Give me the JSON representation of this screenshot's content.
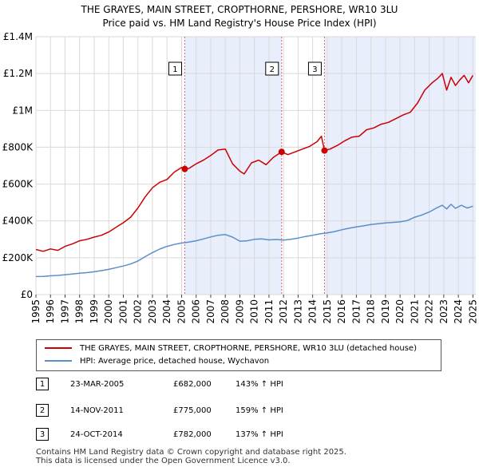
{
  "title": {
    "line1": "THE GRAYES, MAIN STREET, CROPTHORNE, PERSHORE, WR10 3LU",
    "line2": "Price paid vs. HM Land Registry's House Price Index (HPI)"
  },
  "colors": {
    "red": "#cc0000",
    "blue": "#5b8fc9",
    "shade": "#e8eefb"
  },
  "chart_data": {
    "type": "line",
    "xlim": [
      1995,
      2025.2
    ],
    "ylim": [
      0,
      1400000
    ],
    "y_ticks": [
      {
        "value": 0,
        "label": "£0"
      },
      {
        "value": 200000,
        "label": "£200K"
      },
      {
        "value": 400000,
        "label": "£400K"
      },
      {
        "value": 600000,
        "label": "£600K"
      },
      {
        "value": 800000,
        "label": "£800K"
      },
      {
        "value": 1000000,
        "label": "£1M"
      },
      {
        "value": 1200000,
        "label": "£1.2M"
      },
      {
        "value": 1400000,
        "label": "£1.4M"
      }
    ],
    "x_ticks": [
      "1995",
      "1996",
      "1997",
      "1998",
      "1999",
      "2000",
      "2001",
      "2002",
      "2003",
      "2004",
      "2005",
      "2006",
      "2007",
      "2008",
      "2009",
      "2010",
      "2011",
      "2012",
      "2013",
      "2014",
      "2015",
      "2016",
      "2017",
      "2018",
      "2019",
      "2020",
      "2021",
      "2022",
      "2023",
      "2024",
      "2025"
    ],
    "shaded_ranges": [
      [
        2005.22,
        2011.87
      ],
      [
        2014.81,
        2025.2
      ]
    ],
    "series": [
      {
        "name": "THE GRAYES, MAIN STREET, CROPTHORNE, PERSHORE, WR10 3LU (detached house)",
        "color": "#cc0000",
        "x": [
          1995.0,
          1995.5,
          1996.0,
          1996.5,
          1997.0,
          1997.5,
          1998.0,
          1998.5,
          1999.0,
          1999.5,
          2000.0,
          2000.5,
          2001.0,
          2001.5,
          2002.0,
          2002.5,
          2003.0,
          2003.5,
          2004.0,
          2004.5,
          2005.0,
          2005.22,
          2005.5,
          2006.0,
          2006.5,
          2007.0,
          2007.5,
          2008.0,
          2008.5,
          2009.0,
          2009.3,
          2009.8,
          2010.3,
          2010.8,
          2011.3,
          2011.87,
          2012.3,
          2012.8,
          2013.3,
          2013.8,
          2014.3,
          2014.6,
          2014.81,
          2015.2,
          2015.7,
          2016.2,
          2016.7,
          2017.2,
          2017.7,
          2018.2,
          2018.7,
          2019.2,
          2019.7,
          2020.2,
          2020.7,
          2021.2,
          2021.7,
          2022.2,
          2022.6,
          2022.9,
          2023.2,
          2023.5,
          2023.8,
          2024.1,
          2024.4,
          2024.7,
          2025.0
        ],
        "values": [
          245000,
          235000,
          248000,
          240000,
          262000,
          275000,
          292000,
          300000,
          312000,
          322000,
          340000,
          365000,
          390000,
          420000,
          470000,
          530000,
          580000,
          610000,
          625000,
          665000,
          690000,
          682000,
          685000,
          710000,
          730000,
          755000,
          785000,
          790000,
          710000,
          670000,
          655000,
          715000,
          730000,
          705000,
          745000,
          775000,
          760000,
          775000,
          790000,
          805000,
          830000,
          860000,
          782000,
          790000,
          810000,
          835000,
          855000,
          860000,
          895000,
          905000,
          925000,
          935000,
          955000,
          975000,
          990000,
          1040000,
          1110000,
          1150000,
          1175000,
          1200000,
          1110000,
          1180000,
          1135000,
          1165000,
          1190000,
          1150000,
          1190000
        ]
      },
      {
        "name": "HPI: Average price, detached house, Wychavon",
        "color": "#5b8fc9",
        "x": [
          1995.0,
          1995.5,
          1996.0,
          1996.5,
          1997.0,
          1997.5,
          1998.0,
          1998.5,
          1999.0,
          1999.5,
          2000.0,
          2000.5,
          2001.0,
          2001.5,
          2002.0,
          2002.5,
          2003.0,
          2003.5,
          2004.0,
          2004.5,
          2005.0,
          2005.5,
          2006.0,
          2006.5,
          2007.0,
          2007.5,
          2008.0,
          2008.5,
          2009.0,
          2009.5,
          2010.0,
          2010.5,
          2011.0,
          2011.5,
          2012.0,
          2012.5,
          2013.0,
          2013.5,
          2014.0,
          2014.5,
          2015.0,
          2015.5,
          2016.0,
          2016.5,
          2017.0,
          2017.5,
          2018.0,
          2018.5,
          2019.0,
          2019.5,
          2020.0,
          2020.5,
          2021.0,
          2021.5,
          2022.0,
          2022.5,
          2022.9,
          2023.2,
          2023.5,
          2023.8,
          2024.2,
          2024.6,
          2025.0
        ],
        "values": [
          98000,
          99000,
          102000,
          104000,
          108000,
          112000,
          116000,
          119000,
          124000,
          130000,
          137000,
          146000,
          155000,
          166000,
          182000,
          206000,
          228000,
          247000,
          262000,
          272000,
          280000,
          285000,
          292000,
          302000,
          313000,
          322000,
          326000,
          312000,
          290000,
          292000,
          300000,
          302000,
          297000,
          299000,
          296000,
          300000,
          307000,
          315000,
          322000,
          330000,
          335000,
          342000,
          352000,
          360000,
          367000,
          373000,
          380000,
          385000,
          389000,
          392000,
          395000,
          402000,
          420000,
          432000,
          448000,
          470000,
          485000,
          465000,
          490000,
          468000,
          485000,
          470000,
          480000
        ]
      }
    ],
    "transactions": [
      {
        "num": "1",
        "x": 2005.22,
        "value": 682000,
        "date": "23-MAR-2005",
        "price": "£682,000",
        "hpi": "143% ↑ HPI"
      },
      {
        "num": "2",
        "x": 2011.87,
        "value": 775000,
        "date": "14-NOV-2011",
        "price": "£775,000",
        "hpi": "159% ↑ HPI"
      },
      {
        "num": "3",
        "x": 2014.81,
        "value": 782000,
        "date": "24-OCT-2014",
        "price": "£782,000",
        "hpi": "137% ↑ HPI"
      }
    ]
  },
  "legend": {
    "red_label": "THE GRAYES, MAIN STREET, CROPTHORNE, PERSHORE, WR10 3LU (detached house)",
    "blue_label": "HPI: Average price, detached house, Wychavon"
  },
  "footer": {
    "line1": "Contains HM Land Registry data © Crown copyright and database right 2025.",
    "line2": "This data is licensed under the Open Government Licence v3.0."
  }
}
